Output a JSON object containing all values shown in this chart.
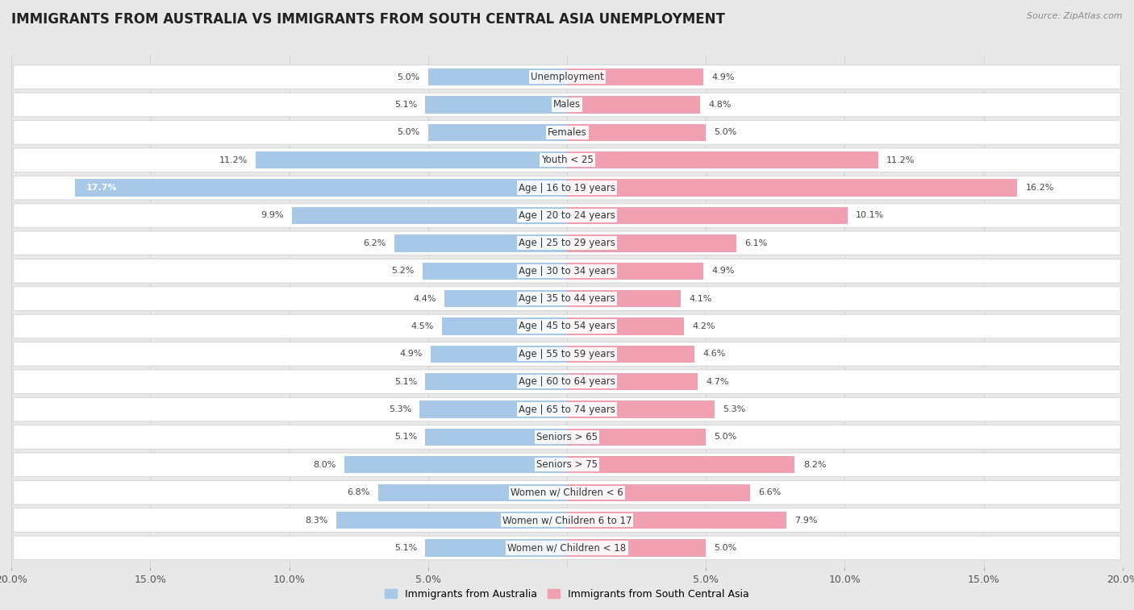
{
  "title": "IMMIGRANTS FROM AUSTRALIA VS IMMIGRANTS FROM SOUTH CENTRAL ASIA UNEMPLOYMENT",
  "source": "Source: ZipAtlas.com",
  "categories": [
    "Unemployment",
    "Males",
    "Females",
    "Youth < 25",
    "Age | 16 to 19 years",
    "Age | 20 to 24 years",
    "Age | 25 to 29 years",
    "Age | 30 to 34 years",
    "Age | 35 to 44 years",
    "Age | 45 to 54 years",
    "Age | 55 to 59 years",
    "Age | 60 to 64 years",
    "Age | 65 to 74 years",
    "Seniors > 65",
    "Seniors > 75",
    "Women w/ Children < 6",
    "Women w/ Children 6 to 17",
    "Women w/ Children < 18"
  ],
  "australia_values": [
    5.0,
    5.1,
    5.0,
    11.2,
    17.7,
    9.9,
    6.2,
    5.2,
    4.4,
    4.5,
    4.9,
    5.1,
    5.3,
    5.1,
    8.0,
    6.8,
    8.3,
    5.1
  ],
  "asia_values": [
    4.9,
    4.8,
    5.0,
    11.2,
    16.2,
    10.1,
    6.1,
    4.9,
    4.1,
    4.2,
    4.6,
    4.7,
    5.3,
    5.0,
    8.2,
    6.6,
    7.9,
    5.0
  ],
  "australia_color": "#a8c8e8",
  "asia_color": "#f0a0b0",
  "background_color": "#e8e8e8",
  "row_color": "#ffffff",
  "row_border_color": "#cccccc",
  "xlim": 20.0,
  "legend_australia": "Immigrants from Australia",
  "legend_asia": "Immigrants from South Central Asia",
  "title_fontsize": 12,
  "tick_fontsize": 9,
  "label_fontsize": 8.5,
  "value_fontsize": 8
}
